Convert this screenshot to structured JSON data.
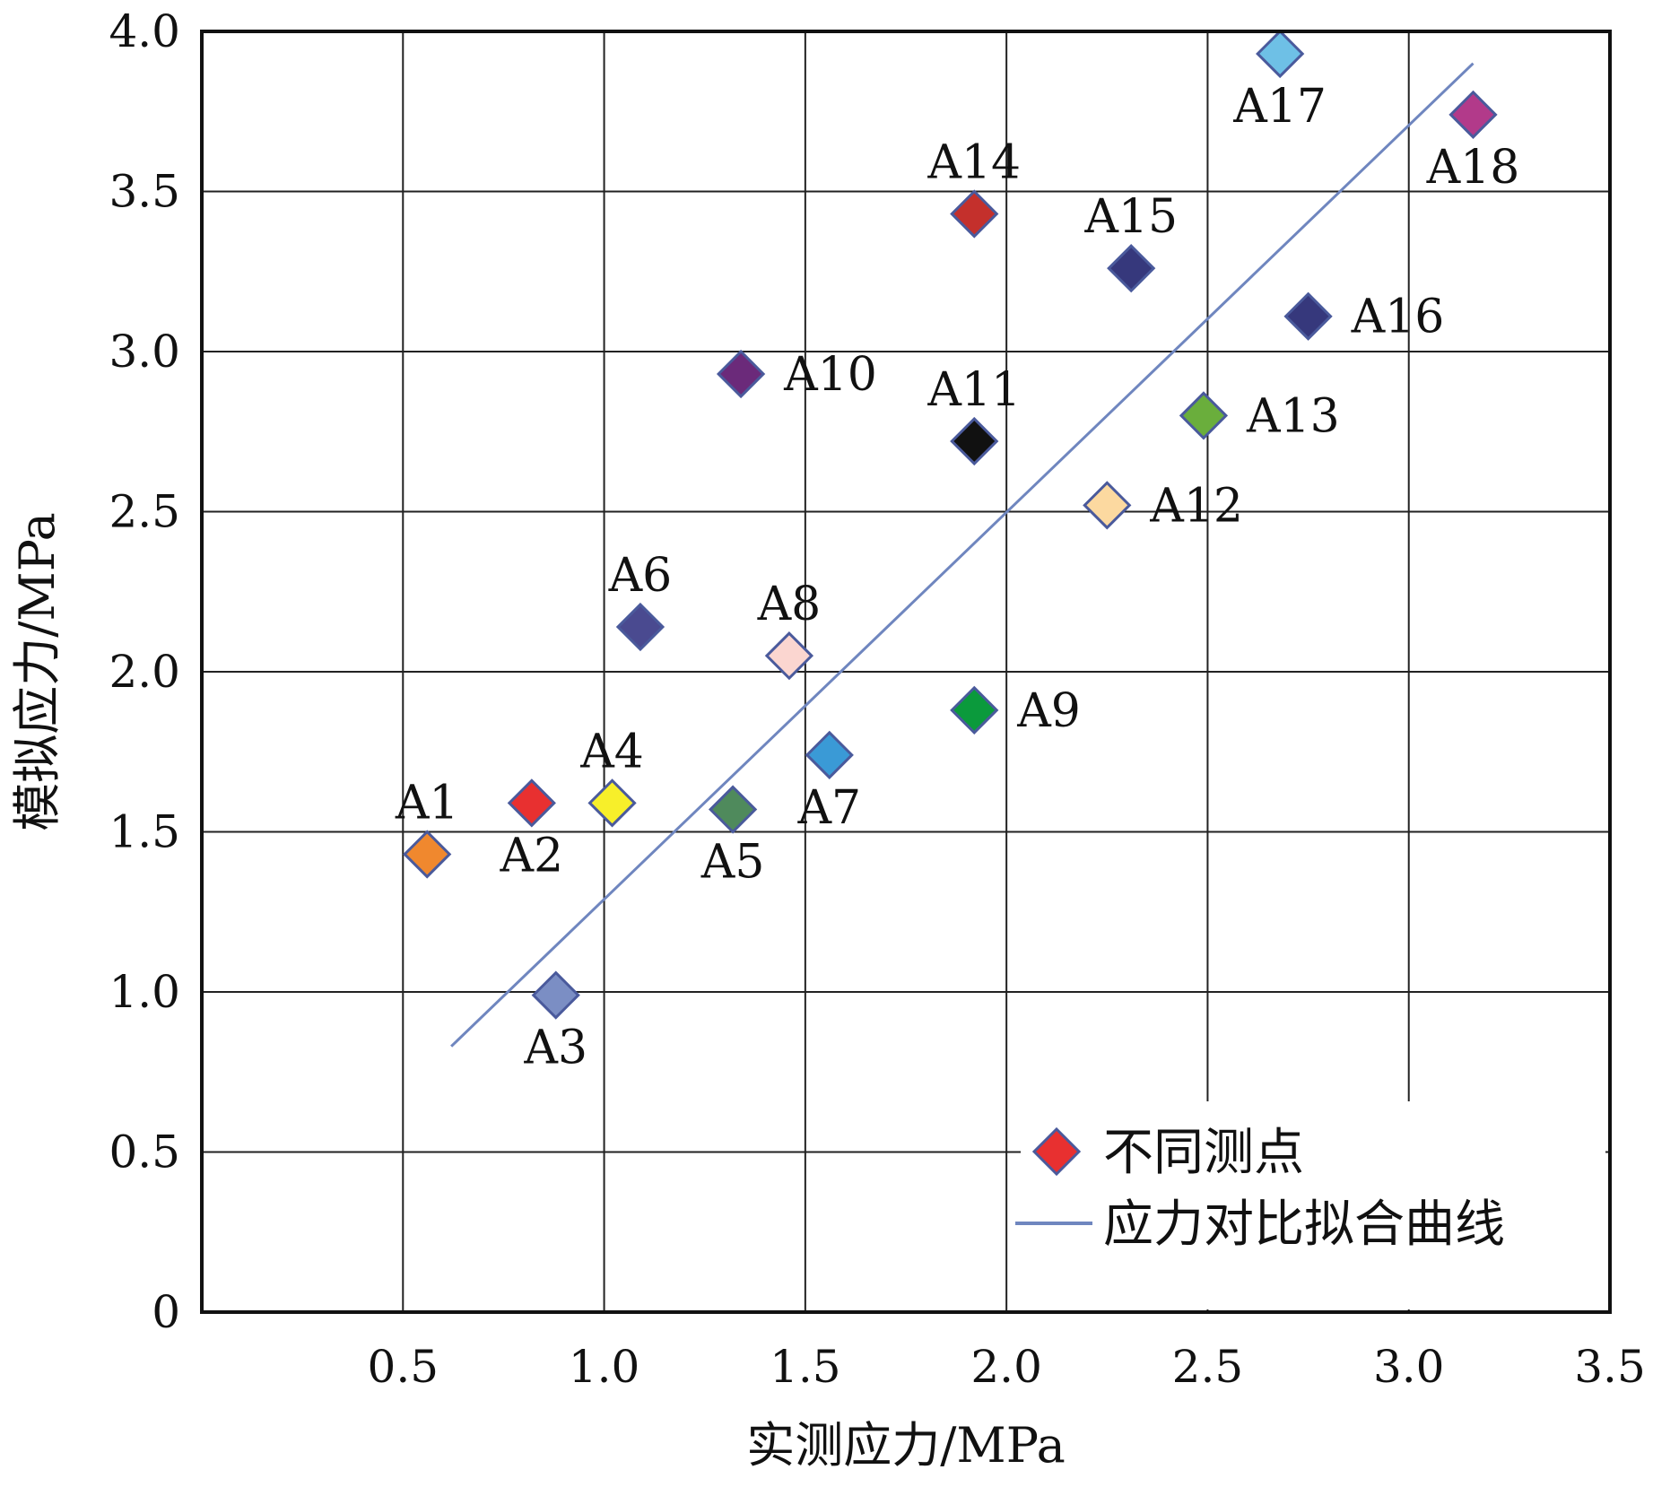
{
  "chart_data": {
    "type": "scatter",
    "title": "",
    "xlabel": "实测应力/MPa",
    "ylabel": "模拟应力/MPa",
    "xlim": [
      0,
      3.5
    ],
    "ylim": [
      0,
      4.0
    ],
    "xticks": [
      0.5,
      1.0,
      1.5,
      2.0,
      2.5,
      3.0,
      3.5
    ],
    "xtick_labels": [
      "0.5",
      "1.0",
      "1.5",
      "2.0",
      "2.5",
      "3.0",
      "3.5"
    ],
    "yticks": [
      0,
      0.5,
      1.0,
      1.5,
      2.0,
      2.5,
      3.0,
      3.5,
      4.0
    ],
    "ytick_labels": [
      "0",
      "0.5",
      "1.0",
      "1.5",
      "2.0",
      "2.5",
      "3.0",
      "3.5",
      "4.0"
    ],
    "grid": true,
    "legend_position": "bottom-right",
    "series": [
      {
        "name": "不同测点",
        "marker": "diamond",
        "points": [
          {
            "label": "A1",
            "x": 0.56,
            "y": 1.43,
            "color": "#f0882e",
            "label_pos": "above"
          },
          {
            "label": "A2",
            "x": 0.82,
            "y": 1.59,
            "color": "#e83030",
            "label_pos": "below"
          },
          {
            "label": "A3",
            "x": 0.88,
            "y": 0.99,
            "color": "#7b8ec4",
            "label_pos": "below"
          },
          {
            "label": "A4",
            "x": 1.02,
            "y": 1.59,
            "color": "#f7ef2a",
            "label_pos": "above"
          },
          {
            "label": "A5",
            "x": 1.32,
            "y": 1.57,
            "color": "#4f8a5c",
            "label_pos": "below"
          },
          {
            "label": "A6",
            "x": 1.09,
            "y": 2.14,
            "color": "#4a4a90",
            "label_pos": "above"
          },
          {
            "label": "A7",
            "x": 1.56,
            "y": 1.74,
            "color": "#3a9ad6",
            "label_pos": "below"
          },
          {
            "label": "A8",
            "x": 1.46,
            "y": 2.05,
            "color": "#fbd6d0",
            "label_pos": "above"
          },
          {
            "label": "A9",
            "x": 1.92,
            "y": 1.88,
            "color": "#0b9a3c",
            "label_pos": "right"
          },
          {
            "label": "A10",
            "x": 1.34,
            "y": 2.93,
            "color": "#6b2a7a",
            "label_pos": "right"
          },
          {
            "label": "A11",
            "x": 1.92,
            "y": 2.72,
            "color": "#111111",
            "label_pos": "above"
          },
          {
            "label": "A12",
            "x": 2.25,
            "y": 2.52,
            "color": "#fcd9a0",
            "label_pos": "right"
          },
          {
            "label": "A13",
            "x": 2.49,
            "y": 2.8,
            "color": "#6aae3c",
            "label_pos": "right"
          },
          {
            "label": "A14",
            "x": 1.92,
            "y": 3.43,
            "color": "#c4302c",
            "label_pos": "above"
          },
          {
            "label": "A15",
            "x": 2.31,
            "y": 3.26,
            "color": "#36387c",
            "label_pos": "above"
          },
          {
            "label": "A16",
            "x": 2.75,
            "y": 3.11,
            "color": "#36387c",
            "label_pos": "right"
          },
          {
            "label": "A17",
            "x": 2.68,
            "y": 3.93,
            "color": "#6ec0e6",
            "label_pos": "below"
          },
          {
            "label": "A18",
            "x": 3.16,
            "y": 3.74,
            "color": "#b23a8a",
            "label_pos": "below-right"
          }
        ]
      },
      {
        "name": "应力对比拟合曲线",
        "type": "line",
        "color": "#6f86bf",
        "x": [
          0.62,
          3.16
        ],
        "y": [
          0.83,
          3.9
        ]
      }
    ],
    "legend": [
      {
        "label": "不同测点",
        "symbol": "diamond",
        "color": "#e83030"
      },
      {
        "label": "应力对比拟合曲线",
        "symbol": "line",
        "color": "#6f86bf"
      }
    ]
  }
}
